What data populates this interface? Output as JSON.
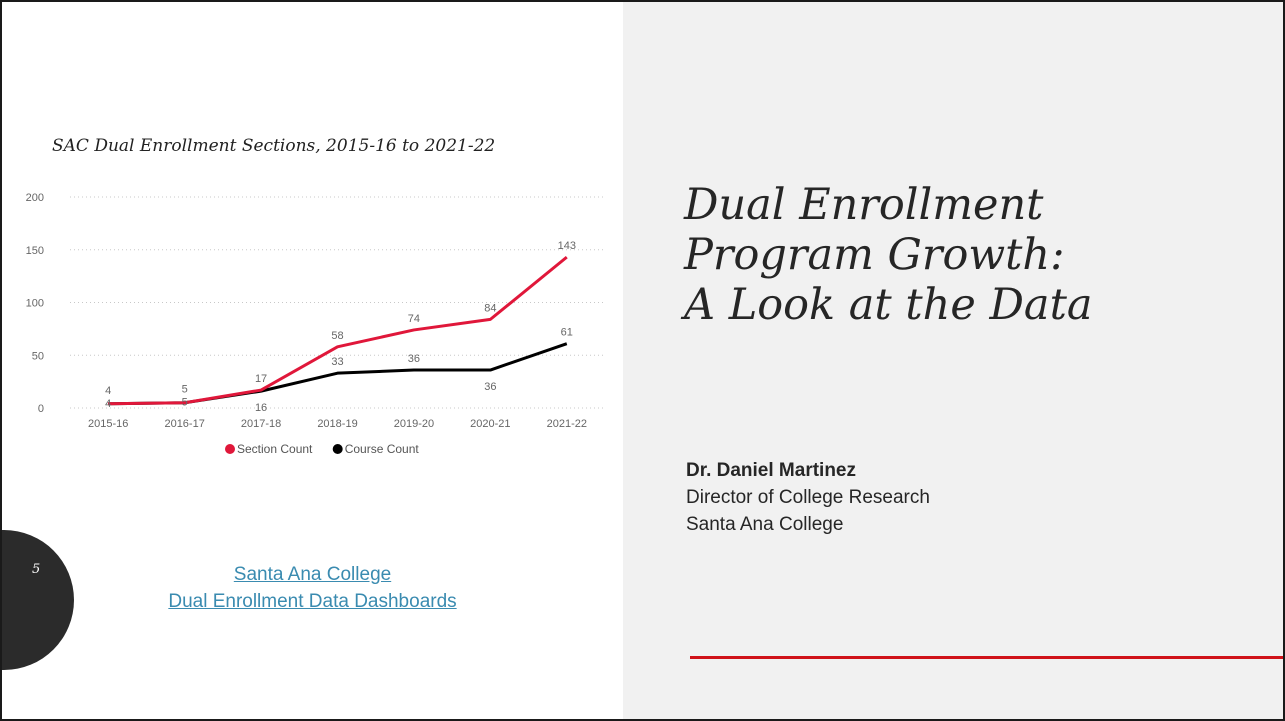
{
  "slide": {
    "page_number": "5",
    "title": "Dual Enrollment Program Growth: A Look at the Data",
    "title_lines": [
      "Dual Enrollment",
      "Program Growth:",
      "A Look at the Data"
    ],
    "presenter": {
      "name": "Dr. Daniel Martinez",
      "role": "Director of College Research",
      "organization": "Santa Ana College"
    },
    "links": {
      "line1": "Santa Ana College",
      "line2": "Dual Enrollment Data Dashboards"
    },
    "accent_color": "#d0121a"
  },
  "chart_data": {
    "type": "line",
    "title": "SAC Dual Enrollment Sections, 2015-16 to 2021-22",
    "categories": [
      "2015-16",
      "2016-17",
      "2017-18",
      "2018-19",
      "2019-20",
      "2020-21",
      "2021-22"
    ],
    "ylim": [
      0,
      200
    ],
    "yticks": [
      0,
      50,
      100,
      150,
      200
    ],
    "grid": true,
    "legend_position": "bottom",
    "series": [
      {
        "name": "Section Count",
        "color": "#e0173a",
        "values": [
          4,
          5,
          17,
          58,
          74,
          84,
          143
        ]
      },
      {
        "name": "Course Count",
        "color": "#000000",
        "values": [
          4,
          5,
          16,
          33,
          36,
          36,
          61
        ]
      }
    ]
  }
}
